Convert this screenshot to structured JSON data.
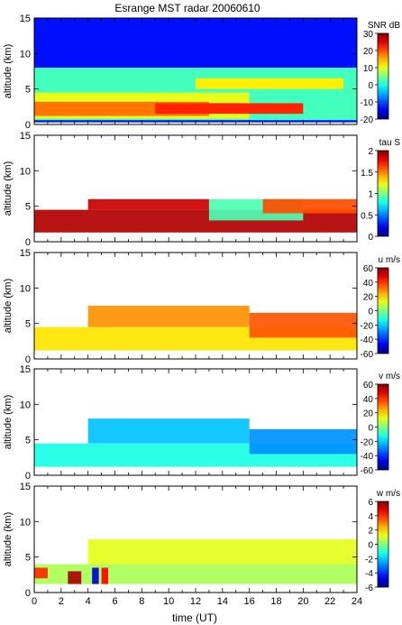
{
  "title": "Esrange MST radar 20060610",
  "xlabel": "time (UT)",
  "chart_data": [
    {
      "type": "heatmap",
      "title": "Esrange MST radar 20060610",
      "ylabel": "altitude (km)",
      "colorbar_label": "SNR dB",
      "x_range": [
        0,
        24
      ],
      "y_range": [
        0,
        15
      ],
      "x_ticks": [
        0,
        2,
        4,
        6,
        8,
        10,
        12,
        14,
        16,
        18,
        20,
        22,
        24
      ],
      "y_ticks": [
        0,
        5,
        10,
        15
      ],
      "color_range": [
        -20,
        30
      ],
      "color_ticks": [
        -20,
        -10,
        0,
        10,
        20,
        30
      ],
      "colormap": "jet",
      "background_fill": "full",
      "layers": [
        {
          "t0": 0,
          "t1": 24,
          "h0": 0.3,
          "h1": 15,
          "value": -13
        },
        {
          "t0": 0,
          "t1": 24,
          "h0": 0.6,
          "h1": 8,
          "value": 2
        },
        {
          "t0": 0,
          "t1": 16,
          "h0": 0.8,
          "h1": 4.5,
          "value": 10
        },
        {
          "t0": 0,
          "t1": 13,
          "h0": 1.2,
          "h1": 3.2,
          "value": 18
        },
        {
          "t0": 9,
          "t1": 20,
          "h0": 1.5,
          "h1": 3,
          "value": 22
        },
        {
          "t0": 12,
          "t1": 23,
          "h0": 5,
          "h1": 6.5,
          "value": 12
        }
      ]
    },
    {
      "type": "heatmap",
      "ylabel": "altitude (km)",
      "colorbar_label": "tau S",
      "x_range": [
        0,
        24
      ],
      "y_range": [
        0,
        15
      ],
      "x_ticks": [
        0,
        2,
        4,
        6,
        8,
        10,
        12,
        14,
        16,
        18,
        20,
        22,
        24
      ],
      "y_ticks": [
        0,
        5,
        10,
        15
      ],
      "color_range": [
        0,
        2
      ],
      "color_ticks": [
        0,
        0.5,
        1,
        1.5,
        2
      ],
      "colormap": "jet",
      "background_fill": "none",
      "layers": [
        {
          "t0": 0,
          "t1": 24,
          "h0": 1.3,
          "h1": 4.5,
          "value": 1.9
        },
        {
          "t0": 4,
          "t1": 13,
          "h0": 4.5,
          "h1": 6,
          "value": 1.85
        },
        {
          "t0": 13,
          "t1": 20,
          "h0": 3,
          "h1": 6,
          "value": 0.9
        },
        {
          "t0": 17,
          "t1": 24,
          "h0": 4,
          "h1": 6,
          "value": 1.6
        }
      ]
    },
    {
      "type": "heatmap",
      "ylabel": "altitude (km)",
      "colorbar_label": "u m/s",
      "x_range": [
        0,
        24
      ],
      "y_range": [
        0,
        15
      ],
      "x_ticks": [
        0,
        2,
        4,
        6,
        8,
        10,
        12,
        14,
        16,
        18,
        20,
        22,
        24
      ],
      "y_ticks": [
        0,
        5,
        10,
        15
      ],
      "color_range": [
        -60,
        60
      ],
      "color_ticks": [
        -60,
        -40,
        -20,
        0,
        20,
        40,
        60
      ],
      "colormap": "jet",
      "background_fill": "none",
      "layers": [
        {
          "t0": 0,
          "t1": 24,
          "h0": 1.2,
          "h1": 4.5,
          "value": 18
        },
        {
          "t0": 4,
          "t1": 16,
          "h0": 4.5,
          "h1": 7.5,
          "value": 28
        },
        {
          "t0": 16,
          "t1": 24,
          "h0": 3,
          "h1": 6.5,
          "value": 35
        }
      ]
    },
    {
      "type": "heatmap",
      "ylabel": "altitude (km)",
      "colorbar_label": "v m/s",
      "x_range": [
        0,
        24
      ],
      "y_range": [
        0,
        15
      ],
      "x_ticks": [
        0,
        2,
        4,
        6,
        8,
        10,
        12,
        14,
        16,
        18,
        20,
        22,
        24
      ],
      "y_ticks": [
        0,
        5,
        10,
        15
      ],
      "color_range": [
        -60,
        60
      ],
      "color_ticks": [
        -60,
        -40,
        -20,
        0,
        20,
        40,
        60
      ],
      "colormap": "jet",
      "background_fill": "none",
      "layers": [
        {
          "t0": 0,
          "t1": 24,
          "h0": 1.2,
          "h1": 4.5,
          "value": -12
        },
        {
          "t0": 4,
          "t1": 16,
          "h0": 4.5,
          "h1": 8,
          "value": -22
        },
        {
          "t0": 16,
          "t1": 24,
          "h0": 3,
          "h1": 6.5,
          "value": -28
        }
      ]
    },
    {
      "type": "heatmap",
      "ylabel": "altitude (km)",
      "colorbar_label": "w m/s",
      "x_range": [
        0,
        24
      ],
      "y_range": [
        0,
        15
      ],
      "x_ticks": [
        0,
        2,
        4,
        6,
        8,
        10,
        12,
        14,
        16,
        18,
        20,
        22,
        24
      ],
      "y_ticks": [
        0,
        5,
        10,
        15
      ],
      "color_range": [
        -6,
        6
      ],
      "color_ticks": [
        -6,
        -4,
        -2,
        0,
        2,
        4,
        6
      ],
      "colormap": "jet",
      "background_fill": "none",
      "layers": [
        {
          "t0": 0,
          "t1": 24,
          "h0": 1.2,
          "h1": 4,
          "value": 0.5
        },
        {
          "t0": 2.5,
          "t1": 3.5,
          "h0": 1.2,
          "h1": 3,
          "value": 5.5
        },
        {
          "t0": 4.3,
          "t1": 4.8,
          "h0": 1.2,
          "h1": 3.5,
          "value": -5
        },
        {
          "t0": 5,
          "t1": 5.5,
          "h0": 1.2,
          "h1": 3.5,
          "value": 4.5
        },
        {
          "t0": 0,
          "t1": 1,
          "h0": 2,
          "h1": 3.5,
          "value": 4
        },
        {
          "t0": 4,
          "t1": 24,
          "h0": 4,
          "h1": 7.5,
          "value": 1.2
        }
      ]
    }
  ]
}
